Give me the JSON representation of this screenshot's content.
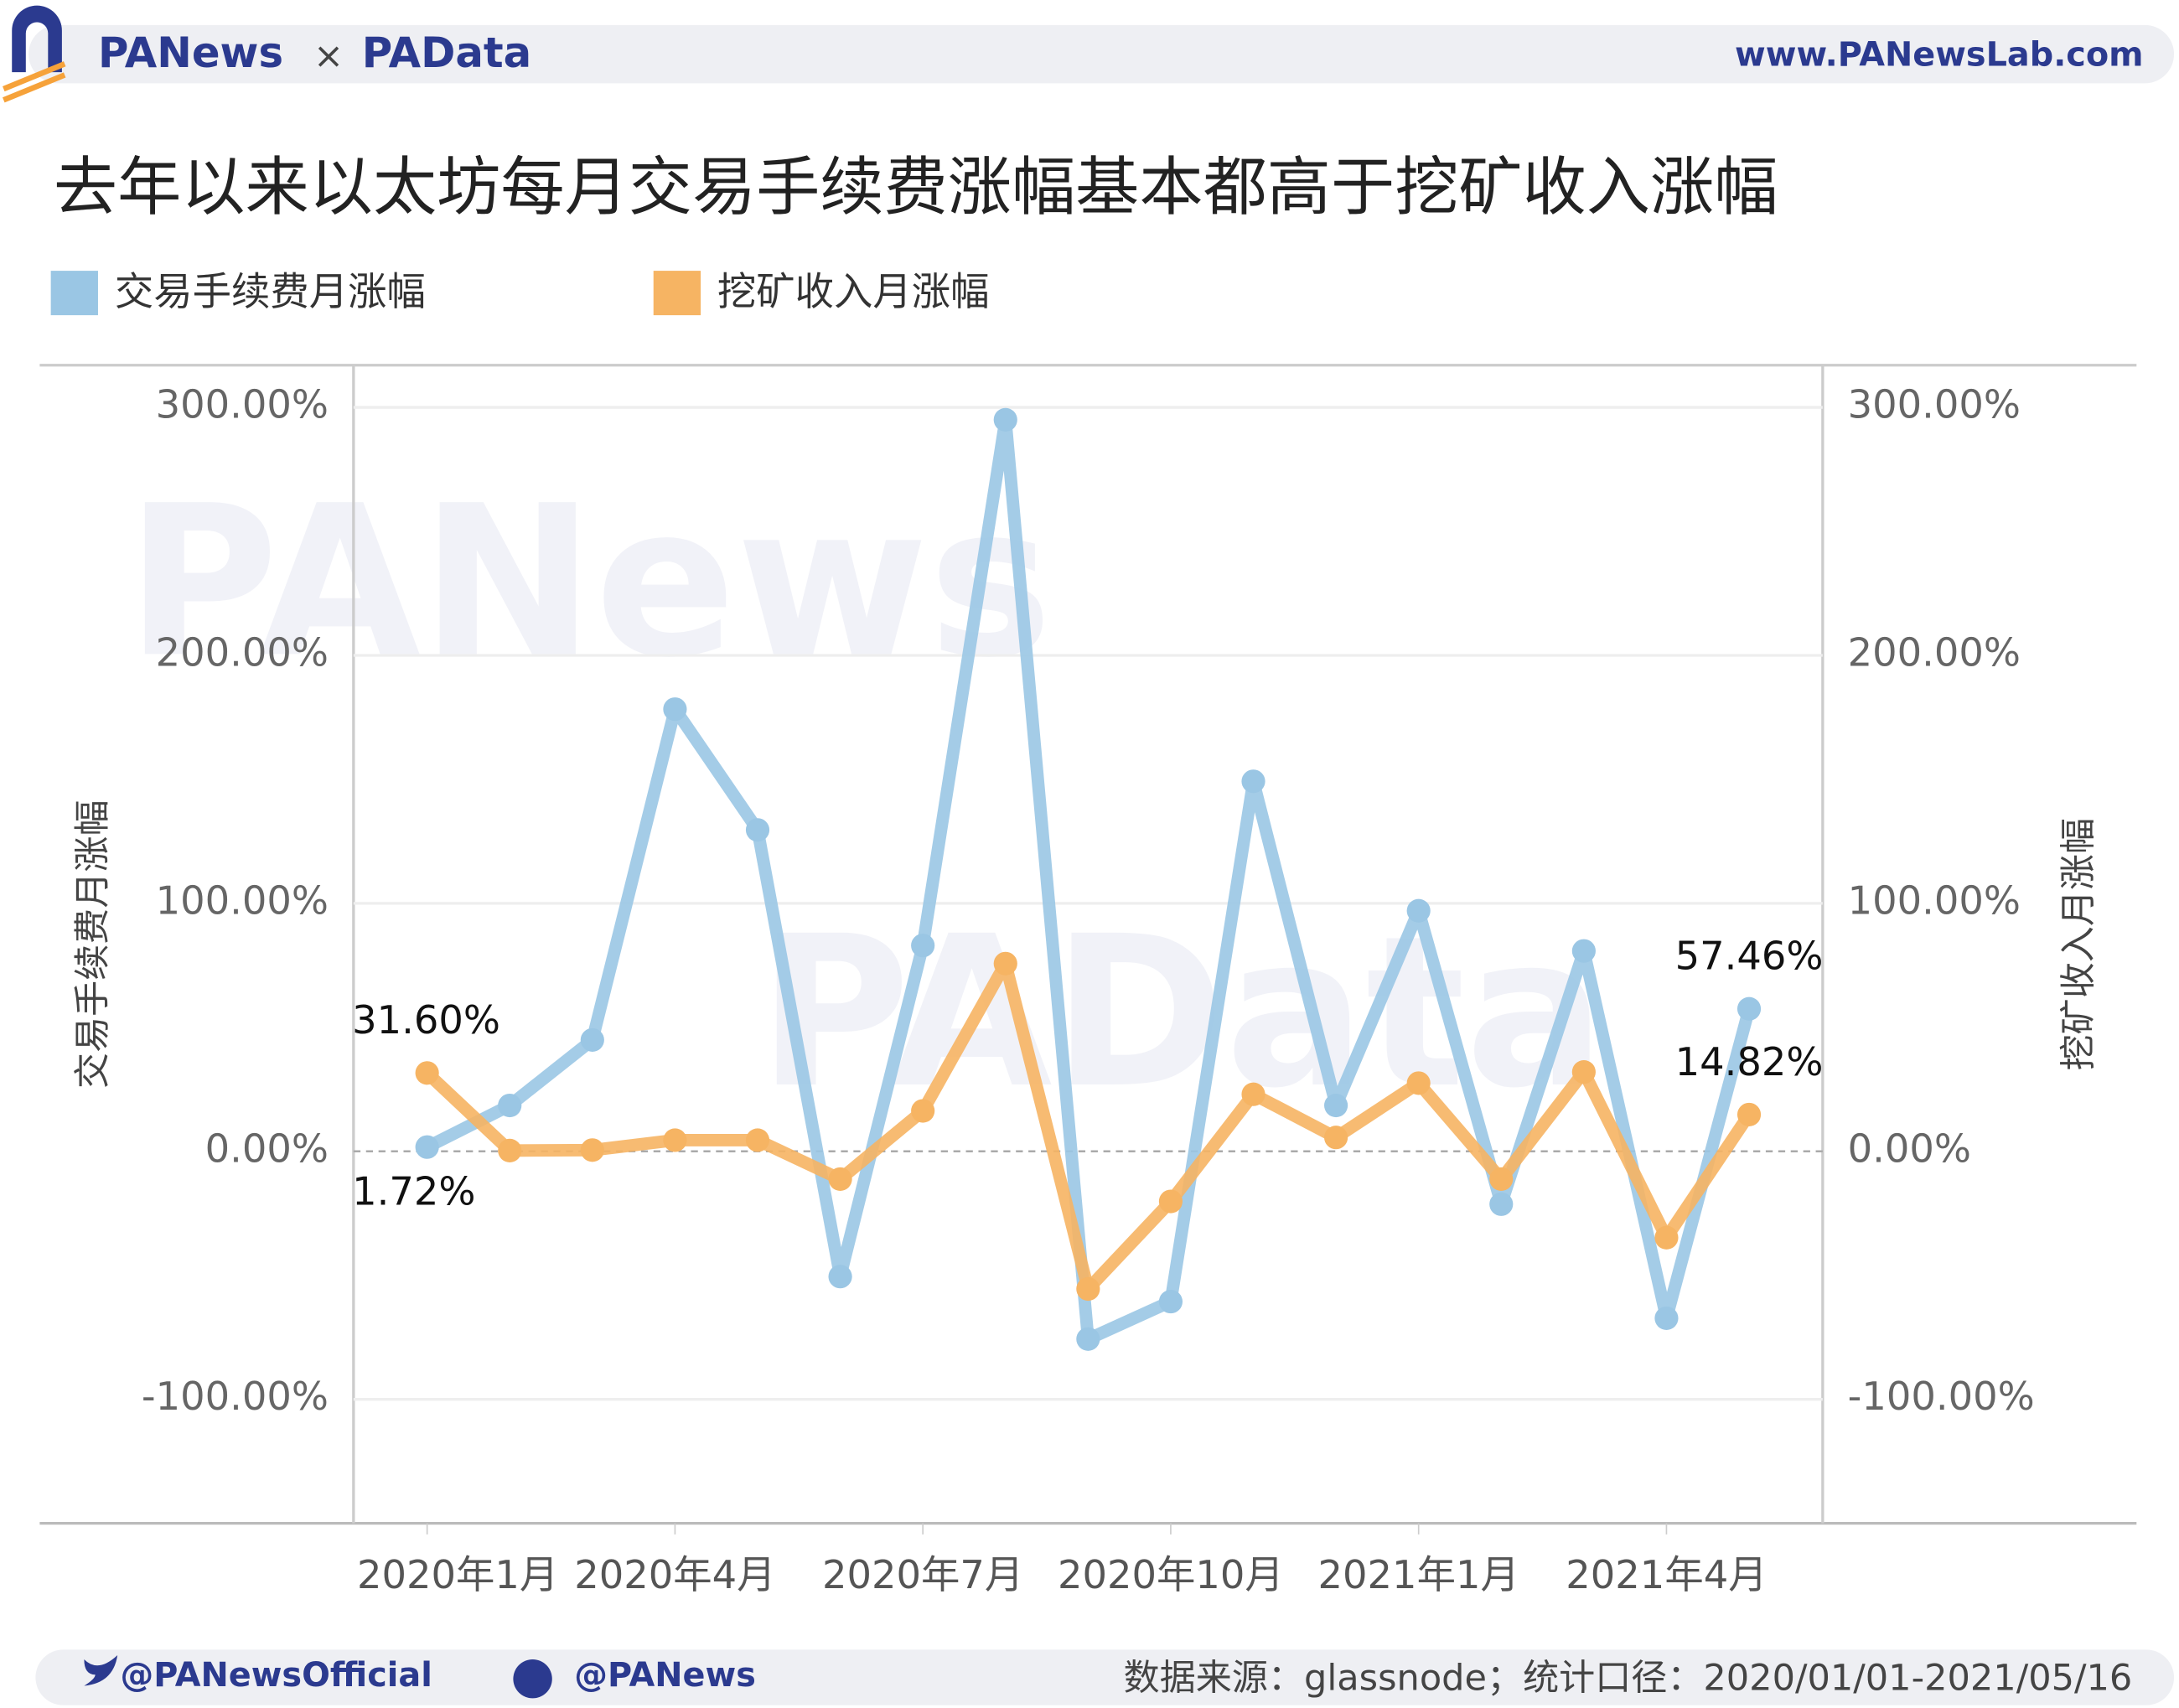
{
  "header": {
    "brand_1": "PANews",
    "separator": "×",
    "brand_2": "PAData",
    "url": "www.PANewsLab.com"
  },
  "watermarks": [
    "PANews",
    "PAData"
  ],
  "footer": {
    "twitter": "@PANewsOfficial",
    "weibo": "@PANews",
    "source": "数据来源：glassnode；统计口径：2020/01/01-2021/05/16"
  },
  "chart_data": {
    "type": "line",
    "title": "去年以来以太坊每月交易手续费涨幅基本都高于挖矿收入涨幅",
    "y_label": "交易手续费月涨幅",
    "y2_label": "挖矿收入月涨幅",
    "categories": [
      "2020年1月",
      null,
      null,
      "2020年4月",
      null,
      null,
      "2020年7月",
      null,
      null,
      "2020年10月",
      null,
      null,
      "2021年1月",
      null,
      null,
      "2021年4月",
      null
    ],
    "series": [
      {
        "name": "交易手续费月涨幅",
        "color": "#9ac6e4",
        "values": [
          1.72,
          18.5,
          44.9,
          178.3,
          129.6,
          -50.5,
          83,
          295,
          -75.7,
          -60.6,
          149.2,
          18.5,
          97,
          -21.3,
          80.8,
          -67.3,
          57.46
        ],
        "value_labels": [
          "1.72%",
          null,
          null,
          null,
          null,
          null,
          null,
          null,
          null,
          null,
          null,
          null,
          null,
          null,
          null,
          null,
          "57.46%"
        ]
      },
      {
        "name": "挖矿收入月涨幅",
        "color": "#f6b463",
        "axis": "y2",
        "values": [
          31.6,
          0.3,
          0.5,
          4.5,
          4.5,
          -11.2,
          16.3,
          75.7,
          -55.5,
          -20.2,
          23,
          5.6,
          27.5,
          -11.2,
          32,
          -34.8,
          14.82
        ],
        "value_labels": [
          "31.60%",
          null,
          null,
          null,
          null,
          null,
          null,
          null,
          null,
          null,
          null,
          null,
          null,
          null,
          null,
          null,
          "14.82%"
        ]
      }
    ],
    "ylim": [
      -150,
      317
    ],
    "yticks": [
      {
        "value": -100,
        "label": "-100.00%"
      },
      {
        "value": 0,
        "label": "0.00%"
      },
      {
        "value": 100,
        "label": "100.00%"
      },
      {
        "value": 200,
        "label": "200.00%"
      },
      {
        "value": 300,
        "label": "300.00%"
      }
    ],
    "y2lim": [
      -150,
      317
    ],
    "y2ticks": [
      {
        "value": -100,
        "label": "-100.00%"
      },
      {
        "value": 0,
        "label": "0.00%"
      },
      {
        "value": 100,
        "label": "100.00%"
      },
      {
        "value": 200,
        "label": "200.00%"
      },
      {
        "value": 300,
        "label": "300.00%"
      }
    ],
    "grid": true
  }
}
